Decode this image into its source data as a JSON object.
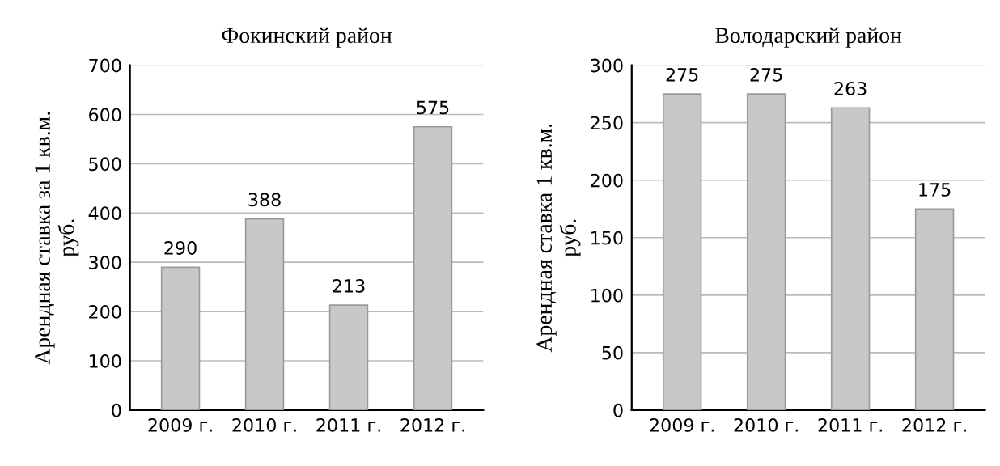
{
  "chart_data": [
    {
      "type": "bar",
      "title": "Фокинский район",
      "ylabel": "Арендная ставка за 1 кв.м.\nруб.",
      "categories": [
        "2009 г.",
        "2010 г.",
        "2011 г.",
        "2012 г."
      ],
      "values": [
        290,
        388,
        213,
        575
      ],
      "color": "#c8c8c8",
      "ylim": [
        0,
        700
      ],
      "yticks": [
        0,
        100,
        200,
        300,
        400,
        500,
        600,
        700
      ],
      "grid": "y",
      "data_labels": true
    },
    {
      "type": "bar",
      "title": "Володарский район",
      "ylabel": "Арендная ставка 1 кв.м.\nруб.",
      "categories": [
        "2009 г.",
        "2010 г.",
        "2011 г.",
        "2012 г."
      ],
      "values": [
        275,
        275,
        263,
        175
      ],
      "color": "#c8c8c8",
      "ylim": [
        0,
        300
      ],
      "yticks": [
        0,
        50,
        100,
        150,
        200,
        250,
        300
      ],
      "grid": "y",
      "data_labels": true
    }
  ]
}
